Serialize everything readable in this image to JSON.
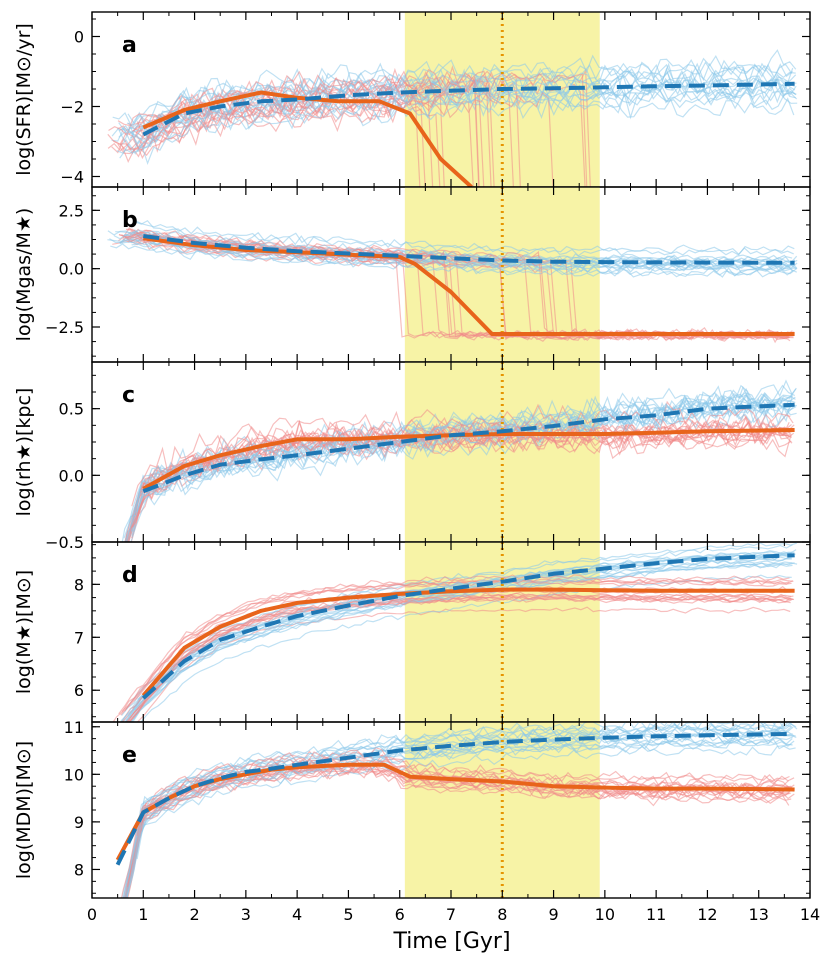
{
  "chart_data": {
    "type": "line",
    "xlabel": "Time [Gyr]",
    "xlim": [
      0,
      14
    ],
    "x_ticks": [
      "0",
      "1",
      "2",
      "3",
      "4",
      "5",
      "6",
      "7",
      "8",
      "9",
      "10",
      "11",
      "12",
      "13",
      "14"
    ],
    "shaded_band": {
      "x_start": 6.1,
      "x_end": 9.9,
      "color": "#f7f3a6"
    },
    "vertical_line": {
      "x": 8.0,
      "color": "#e69500",
      "style": "dotted"
    },
    "colors": {
      "quenched": "#e8641b",
      "starforming": "#1f77b4",
      "quenched_light": "#f08a8a",
      "starforming_light": "#8cc8ea"
    },
    "panels": [
      {
        "letter": "a",
        "ylabel": "log(SFR)[M⊙/yr]",
        "ylim": [
          -4.3,
          0.7
        ],
        "y_ticks": [
          -4,
          -2,
          0
        ],
        "y_tick_labels": [
          "−4",
          "−2",
          "0"
        ],
        "series": [
          {
            "key": "quenched",
            "style": "solid",
            "x": [
              1.0,
              1.8,
              2.5,
              3.3,
              4.0,
              4.8,
              5.6,
              6.2,
              6.8,
              7.4
            ],
            "y": [
              -2.6,
              -2.1,
              -1.85,
              -1.6,
              -1.75,
              -1.85,
              -1.85,
              -2.2,
              -3.5,
              -4.3
            ]
          },
          {
            "key": "starforming",
            "style": "dashed",
            "x": [
              1.0,
              1.8,
              2.5,
              3.3,
              4.0,
              5.0,
              6.0,
              7.0,
              8.0,
              9.0,
              10.0,
              11.0,
              12.0,
              13.0,
              13.7
            ],
            "y": [
              -2.8,
              -2.2,
              -2.0,
              -1.85,
              -1.8,
              -1.68,
              -1.6,
              -1.55,
              -1.5,
              -1.48,
              -1.45,
              -1.42,
              -1.4,
              -1.37,
              -1.35
            ]
          }
        ]
      },
      {
        "letter": "b",
        "ylabel": "log(Mgas/M★)",
        "ylim": [
          -4.0,
          3.5
        ],
        "y_ticks": [
          -2.5,
          0.0,
          2.5
        ],
        "y_tick_labels": [
          "−2.5",
          "0.0",
          "2.5"
        ],
        "series": [
          {
            "key": "quenched",
            "style": "solid",
            "x": [
              1.0,
              2.0,
              3.0,
              4.0,
              5.0,
              6.0,
              6.3,
              7.0,
              7.8,
              8.5,
              10.0,
              12.0,
              13.7
            ],
            "y": [
              1.3,
              1.0,
              0.8,
              0.7,
              0.6,
              0.5,
              0.2,
              -1.0,
              -2.8,
              -2.8,
              -2.8,
              -2.8,
              -2.8
            ]
          },
          {
            "key": "starforming",
            "style": "dashed",
            "x": [
              1.0,
              2.0,
              3.0,
              4.0,
              5.0,
              6.0,
              7.0,
              8.0,
              9.0,
              10.0,
              11.0,
              12.0,
              13.7
            ],
            "y": [
              1.4,
              1.1,
              0.9,
              0.75,
              0.65,
              0.55,
              0.45,
              0.35,
              0.3,
              0.28,
              0.27,
              0.26,
              0.25
            ]
          }
        ]
      },
      {
        "letter": "c",
        "ylabel": "log(rh★)[kpc]",
        "ylim": [
          -0.5,
          0.85
        ],
        "y_ticks": [
          -0.5,
          0.0,
          0.5
        ],
        "y_tick_labels": [
          "−0.5",
          "0.0",
          "0.5"
        ],
        "series": [
          {
            "key": "quenched",
            "style": "solid",
            "x": [
              1.0,
              1.8,
              2.5,
              3.3,
              4.0,
              5.0,
              6.0,
              7.0,
              8.0,
              9.0,
              10.0,
              11.0,
              12.0,
              13.7
            ],
            "y": [
              -0.1,
              0.07,
              0.15,
              0.22,
              0.27,
              0.27,
              0.29,
              0.3,
              0.31,
              0.31,
              0.31,
              0.32,
              0.33,
              0.34
            ]
          },
          {
            "key": "starforming",
            "style": "dashed",
            "x": [
              1.0,
              1.8,
              2.5,
              3.3,
              4.0,
              5.0,
              6.0,
              7.0,
              8.0,
              9.0,
              10.0,
              11.0,
              12.0,
              13.7
            ],
            "y": [
              -0.12,
              0.0,
              0.08,
              0.12,
              0.15,
              0.2,
              0.25,
              0.3,
              0.33,
              0.37,
              0.42,
              0.45,
              0.5,
              0.53
            ]
          }
        ]
      },
      {
        "letter": "d",
        "ylabel": "log(M★)[M⊙]",
        "ylim": [
          5.4,
          8.8
        ],
        "y_ticks": [
          6,
          7,
          8
        ],
        "y_tick_labels": [
          "6",
          "7",
          "8"
        ],
        "series": [
          {
            "key": "quenched",
            "style": "solid",
            "x": [
              1.0,
              1.8,
              2.5,
              3.3,
              4.0,
              5.0,
              6.0,
              7.0,
              8.0,
              9.0,
              10.0,
              11.0,
              12.0,
              13.7
            ],
            "y": [
              5.9,
              6.8,
              7.2,
              7.5,
              7.65,
              7.75,
              7.82,
              7.87,
              7.9,
              7.9,
              7.89,
              7.88,
              7.88,
              7.88
            ]
          },
          {
            "key": "starforming",
            "style": "dashed",
            "x": [
              1.0,
              1.8,
              2.5,
              3.3,
              4.0,
              5.0,
              6.0,
              7.0,
              8.0,
              9.0,
              10.0,
              11.0,
              12.0,
              13.7
            ],
            "y": [
              5.85,
              6.55,
              6.95,
              7.2,
              7.4,
              7.6,
              7.78,
              7.92,
              8.05,
              8.2,
              8.3,
              8.4,
              8.48,
              8.55
            ]
          }
        ]
      },
      {
        "letter": "e",
        "ylabel": "log(MDM)[M⊙]",
        "ylim": [
          7.4,
          11.1
        ],
        "y_ticks": [
          8,
          9,
          10,
          11
        ],
        "y_tick_labels": [
          "8",
          "9",
          "10",
          "11"
        ],
        "series": [
          {
            "key": "quenched",
            "style": "solid",
            "x": [
              0.5,
              1.0,
              1.5,
              2.0,
              2.5,
              3.0,
              3.5,
              4.0,
              5.0,
              5.7,
              6.2,
              7.0,
              8.0,
              9.0,
              10.0,
              11.0,
              12.0,
              13.7
            ],
            "y": [
              8.2,
              9.2,
              9.5,
              9.75,
              9.9,
              10.0,
              10.1,
              10.15,
              10.2,
              10.2,
              9.95,
              9.9,
              9.85,
              9.75,
              9.72,
              9.7,
              9.7,
              9.68
            ]
          },
          {
            "key": "starforming",
            "style": "dashed",
            "x": [
              0.5,
              1.0,
              1.5,
              2.0,
              2.5,
              3.0,
              3.5,
              4.0,
              5.0,
              6.0,
              7.0,
              8.0,
              9.0,
              10.0,
              11.0,
              12.0,
              13.7
            ],
            "y": [
              8.1,
              9.2,
              9.5,
              9.75,
              9.92,
              10.05,
              10.12,
              10.2,
              10.35,
              10.5,
              10.6,
              10.68,
              10.73,
              10.77,
              10.8,
              10.82,
              10.85
            ]
          }
        ]
      }
    ]
  }
}
